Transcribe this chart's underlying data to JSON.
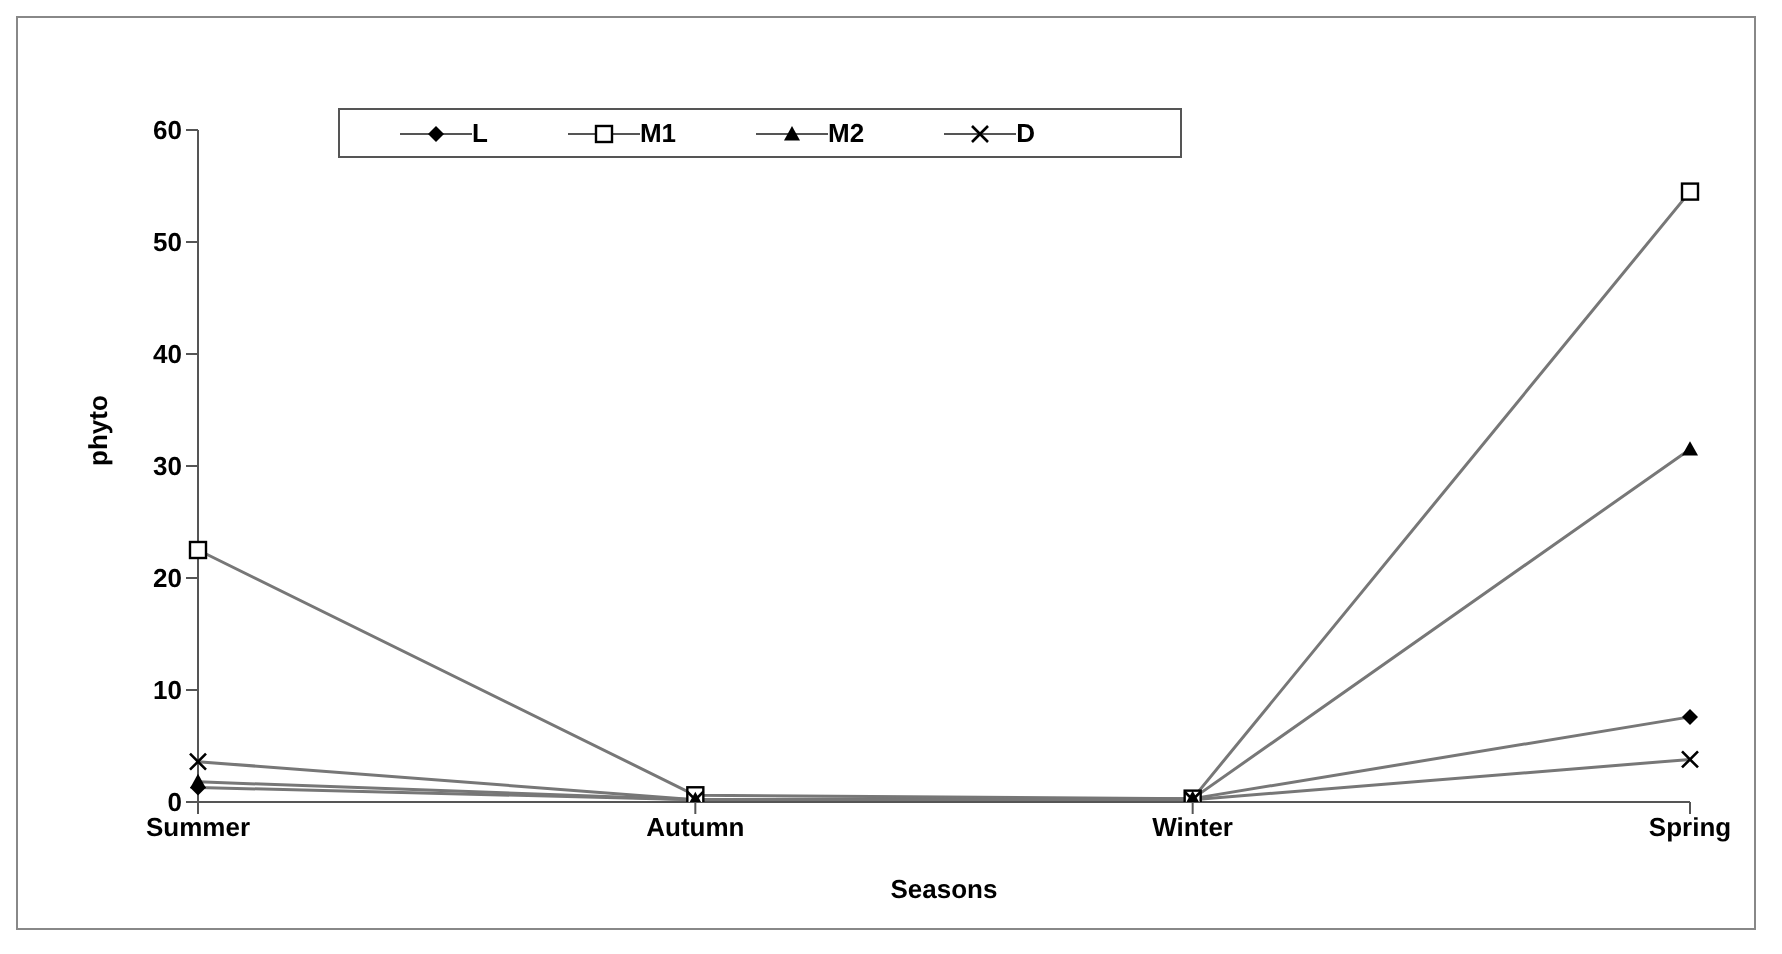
{
  "chart_data": {
    "type": "line",
    "xlabel": "Seasons",
    "ylabel": "phyto",
    "categories": [
      "Summer",
      "Autumn",
      "Winter",
      "Spring"
    ],
    "series": [
      {
        "name": "L",
        "color": "#000000",
        "marker": "diamond",
        "values": [
          1.3,
          0.2,
          0.3,
          7.6
        ]
      },
      {
        "name": "M1",
        "color": "#000000",
        "marker": "square",
        "values": [
          22.5,
          0.6,
          0.3,
          54.5
        ]
      },
      {
        "name": "M2",
        "color": "#000000",
        "marker": "triangle",
        "values": [
          1.8,
          0.2,
          0.3,
          31.5
        ]
      },
      {
        "name": "D",
        "color": "#000000",
        "marker": "cross",
        "values": [
          3.6,
          0.2,
          0.2,
          3.8
        ]
      }
    ],
    "ylim": [
      0,
      60
    ],
    "yticks": [
      0,
      10,
      20,
      30,
      40,
      50,
      60
    ],
    "grid": false,
    "legend": "top"
  }
}
